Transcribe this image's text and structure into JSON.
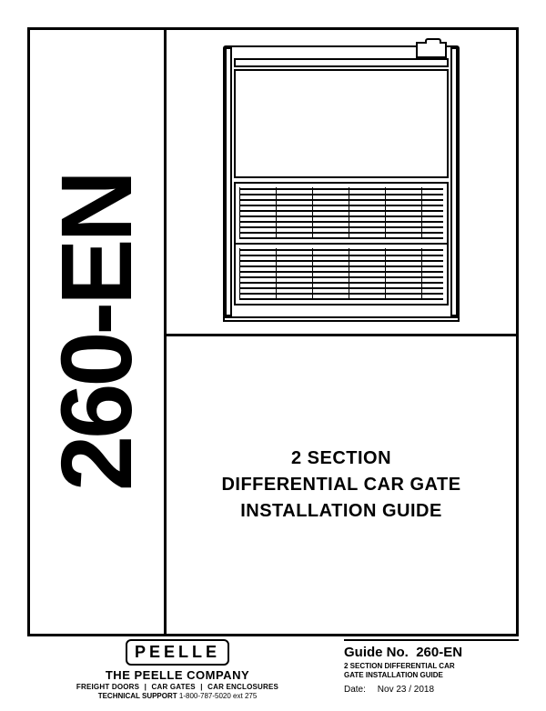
{
  "doc_code": "260-EN",
  "title": {
    "line1": "2 SECTION",
    "line2": "DIFFERENTIAL CAR GATE",
    "line3": "INSTALLATION GUIDE"
  },
  "footer": {
    "logo_text": "PEELLE",
    "company": "THE PEELLE COMPANY",
    "products": {
      "p1": "FREIGHT DOORS",
      "p2": "CAR GATES",
      "p3": "CAR ENCLOSURES"
    },
    "support_label": "TECHNICAL SUPPORT",
    "support_number": "1-800-787-5020 ext 275",
    "guide_no_label": "Guide No.",
    "guide_no_value": "260-EN",
    "guide_title_l1": "2 SECTION DIFFERENTIAL CAR",
    "guide_title_l2": "GATE INSTALLATION GUIDE",
    "date_label": "Date:",
    "date_value": "Nov 23 / 2018"
  },
  "colors": {
    "ink": "#000000",
    "paper": "#ffffff"
  }
}
